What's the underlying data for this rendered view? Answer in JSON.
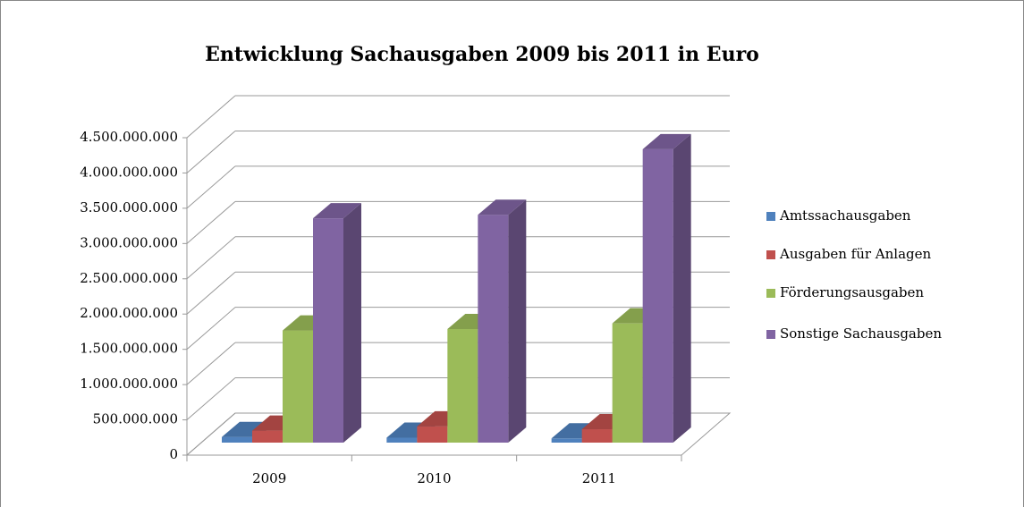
{
  "chart_data": {
    "type": "bar3d",
    "title": "Entwicklung Sachausgaben 2009 bis 2011 in Euro",
    "categories": [
      "2009",
      "2010",
      "2011"
    ],
    "series": [
      {
        "name": "Amtssachausgaben",
        "color": "#4f81bd",
        "values": [
          80000000,
          70000000,
          60000000
        ]
      },
      {
        "name": "Ausgaben für Anlagen",
        "color": "#c0504d",
        "values": [
          170000000,
          230000000,
          190000000
        ]
      },
      {
        "name": "Förderungsausgaben",
        "color": "#9bbb59",
        "values": [
          1590000000,
          1610000000,
          1690000000
        ]
      },
      {
        "name": "Sonstige Sachausgaben",
        "color": "#8064a2",
        "values": [
          3180000000,
          3230000000,
          4160000000
        ]
      }
    ],
    "ylim": [
      0,
      4500000000
    ],
    "yticks": [
      0,
      {
        "value": 500000000,
        "label": "500.000.000"
      },
      {
        "value": 1000000000,
        "label": "1.000.000.000"
      },
      {
        "value": 1500000000,
        "label": "1.500.000.000"
      },
      {
        "value": 2000000000,
        "label": "2.000.000.000"
      },
      {
        "value": 2500000000,
        "label": "2.500.000.000"
      },
      {
        "value": 3000000000,
        "label": "3.000.000.000"
      },
      {
        "value": 3500000000,
        "label": "3.500.000.000"
      },
      {
        "value": 4000000000,
        "label": "4.000.000.000"
      },
      {
        "value": 4500000000,
        "label": "4.500.000.000"
      }
    ],
    "grid": true,
    "legend": "right"
  }
}
